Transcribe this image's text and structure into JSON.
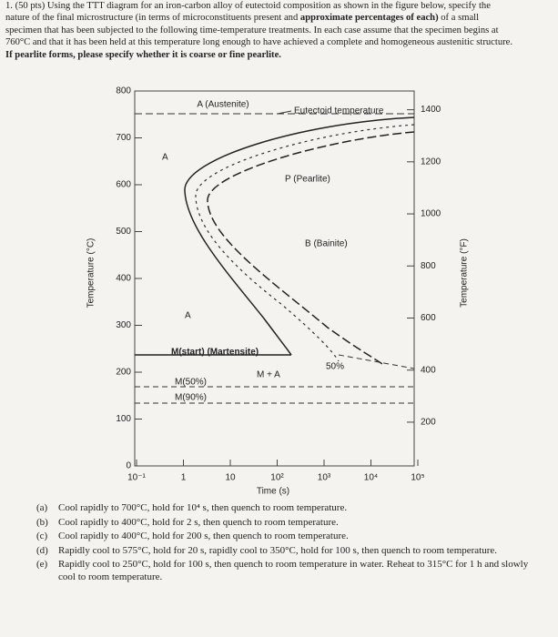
{
  "question": {
    "segments": [
      "1. (50 pts) Using the TTT diagram for an iron-carbon alloy of eutectoid composition as shown in the figure below, specify the nature of the final microstructure (in terms of microconstituents present and ",
      "approximate percentages of each)",
      " of a small specimen that has been subjected to the following time-temperature treatments. In each case assume that the specimen begins at 760°C and that it has been held at this temperature long enough to have achieved a complete and homogeneous austenitic structure. ",
      "If pearlite forms, please specify whether it is coarse or fine pearlite."
    ]
  },
  "diagram": {
    "y_label": "Temperature (°C)",
    "y2_label": "Temperature (°F)",
    "x_label": "Time (s)",
    "y_ticks": [
      "800",
      "700",
      "600",
      "500",
      "400",
      "300",
      "200",
      "100",
      "0"
    ],
    "y2_ticks": [
      "1400",
      "1200",
      "1000",
      "800",
      "600",
      "400",
      "200"
    ],
    "x_ticks": [
      "10⁻¹",
      "1",
      "10",
      "10²",
      "10³",
      "10⁴",
      "10⁵"
    ],
    "labels": {
      "austenite": "A (Austenite)",
      "eutectoid": "Eutectoid temperature",
      "a_upper": "A",
      "pearlite": "P (Pearlite)",
      "bainite": "B (Bainite)",
      "a_lower": "A",
      "martensite_start": "M(start) (Martensite)",
      "m_plus_a": "M + A",
      "fifty": "50%",
      "m50": "M(50%)",
      "m90": "M(90%)"
    }
  },
  "options": [
    {
      "label": "(a)",
      "text": "Cool rapidly to 700°C, hold for 10⁴ s, then quench to room temperature."
    },
    {
      "label": "(b)",
      "text": "Cool rapidly to 400°C, hold for 2 s, then quench to room temperature."
    },
    {
      "label": "(c)",
      "text": "Cool rapidly to 400°C, hold for 200 s, then quench to room temperature."
    },
    {
      "label": "(d)",
      "text": "Rapidly cool to 575°C, hold for 20 s, rapidly cool to 350°C, hold for 100 s, then quench to room temperature."
    },
    {
      "label": "(e)",
      "text": "Rapidly cool to 250°C, hold for 100 s, then quench to room temperature in water. Reheat to 315°C for 1 h and slowly cool to room temperature."
    }
  ]
}
